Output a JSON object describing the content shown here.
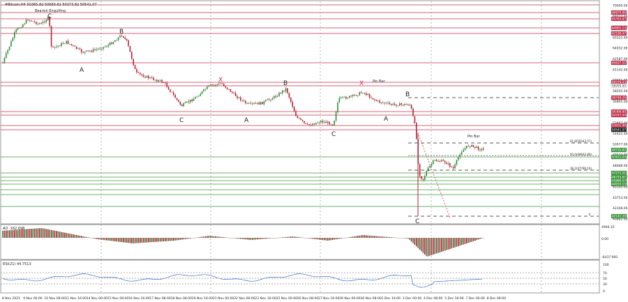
{
  "header": {
    "symbol_line": "#Bitcoin,H4  50365.82 50683.82 50373.82 50541.07"
  },
  "pattern_labels": {
    "bearish_engulfing": "Bearish Engulfing",
    "pin_bar_1": "Pin Bar",
    "pin_bar_2": "Pin Bar"
  },
  "fib_labels": {
    "fib_618": "61.8(50543.57)",
    "fib_50": "50.0(49642.80)",
    "fib_382": "38.2(47780.16)",
    "fib_0": "0"
  },
  "wave_labels": [
    {
      "id": "wave-A-1",
      "text": "A"
    },
    {
      "id": "wave-B-1",
      "text": "B"
    },
    {
      "id": "wave-C-1",
      "text": "C"
    },
    {
      "id": "wave-X-1",
      "text": "X"
    },
    {
      "id": "wave-A-2",
      "text": "A"
    },
    {
      "id": "wave-B-2",
      "text": "B"
    },
    {
      "id": "wave-C-2",
      "text": "C"
    },
    {
      "id": "wave-X-2",
      "text": "X"
    },
    {
      "id": "wave-A-3",
      "text": "A"
    },
    {
      "id": "wave-B-3",
      "text": "B"
    },
    {
      "id": "wave-C-3",
      "text": "C"
    }
  ],
  "price_axis": {
    "ticks": [
      "70000.00",
      "68412.00",
      "66969.00",
      "65522.00",
      "64032.00",
      "62587.00",
      "61142.00",
      "59651.00",
      "58205.00",
      "56805.00",
      "55376.00",
      "53867.00",
      "52422.00",
      "50977.00",
      "49533.00",
      "48088.00",
      "46625.00",
      "45195.00",
      "43753.00",
      "42308.00",
      "40862.00"
    ],
    "tags": [
      {
        "value": "66879.86",
        "color": "#c8304a"
      },
      {
        "value": "65763.87",
        "color": "#c8304a"
      },
      {
        "value": "64901.13",
        "color": "#c8304a"
      },
      {
        "value": "62188.47",
        "color": "#c8304a"
      },
      {
        "value": "60637.55",
        "color": "#c8304a"
      },
      {
        "value": "60279.43",
        "color": "#c8304a"
      },
      {
        "value": "58205.00",
        "color": "#ffffff"
      },
      {
        "value": "56748.29",
        "color": "#c8304a"
      },
      {
        "value": "56306.80",
        "color": "#c8304a"
      },
      {
        "value": "54747.44",
        "color": "#c8304a"
      },
      {
        "value": "53931.90",
        "color": "#c8304a"
      },
      {
        "value": "50541.07",
        "color": "#1a1a1a"
      },
      {
        "value": "49735.83",
        "color": "#3a9a3a"
      },
      {
        "value": "47671.04",
        "color": "#3a9a3a"
      },
      {
        "value": "47271.51",
        "color": "#3a9a3a"
      },
      {
        "value": "46715.67",
        "color": "#3a9a3a"
      },
      {
        "value": "45866.57",
        "color": "#3a9a3a"
      },
      {
        "value": "44910.13",
        "color": "#3a9a3a"
      },
      {
        "value": "42141.20",
        "color": "#3a9a3a"
      }
    ]
  },
  "ao_panel": {
    "label": "AO -162.698",
    "ticks": [
      "4994.35",
      "0.00",
      "-6437.960"
    ]
  },
  "rsi_panel": {
    "label": "RSI(21) 44.7513",
    "ticks": [
      "100",
      "70",
      "50",
      "30",
      "0"
    ]
  },
  "time_axis": {
    "labels": [
      "8 Nov 2021",
      "9 Nov 00:00",
      "10 Nov 08:00",
      "11 Nov 16:00",
      "14 Nov 00:00",
      "15 Nov 08:00",
      "16 Nov 16:00",
      "17 Nov 08:00",
      "18 Nov 08:00",
      "19 Nov 16:00",
      "21 Nov 00:00",
      "22 Nov 08:00",
      "23 Nov 16:00",
      "25 Nov 00:00",
      "26 Nov 08:00",
      "27 Nov 16:00",
      "29 Nov 00:00",
      "30 Nov 08:00",
      "1 Dec 16:00",
      "3 Dec 00:00",
      "4 Dec 08:00",
      "5 Dec 16:00",
      "7 Dec 00:00",
      "8 Dec 08:00"
    ]
  },
  "colors": {
    "bull": "#2e8b3a",
    "bear": "#b22234",
    "resistance": "#c8304a",
    "support": "#3a9a3a",
    "grid": "#888888"
  }
}
